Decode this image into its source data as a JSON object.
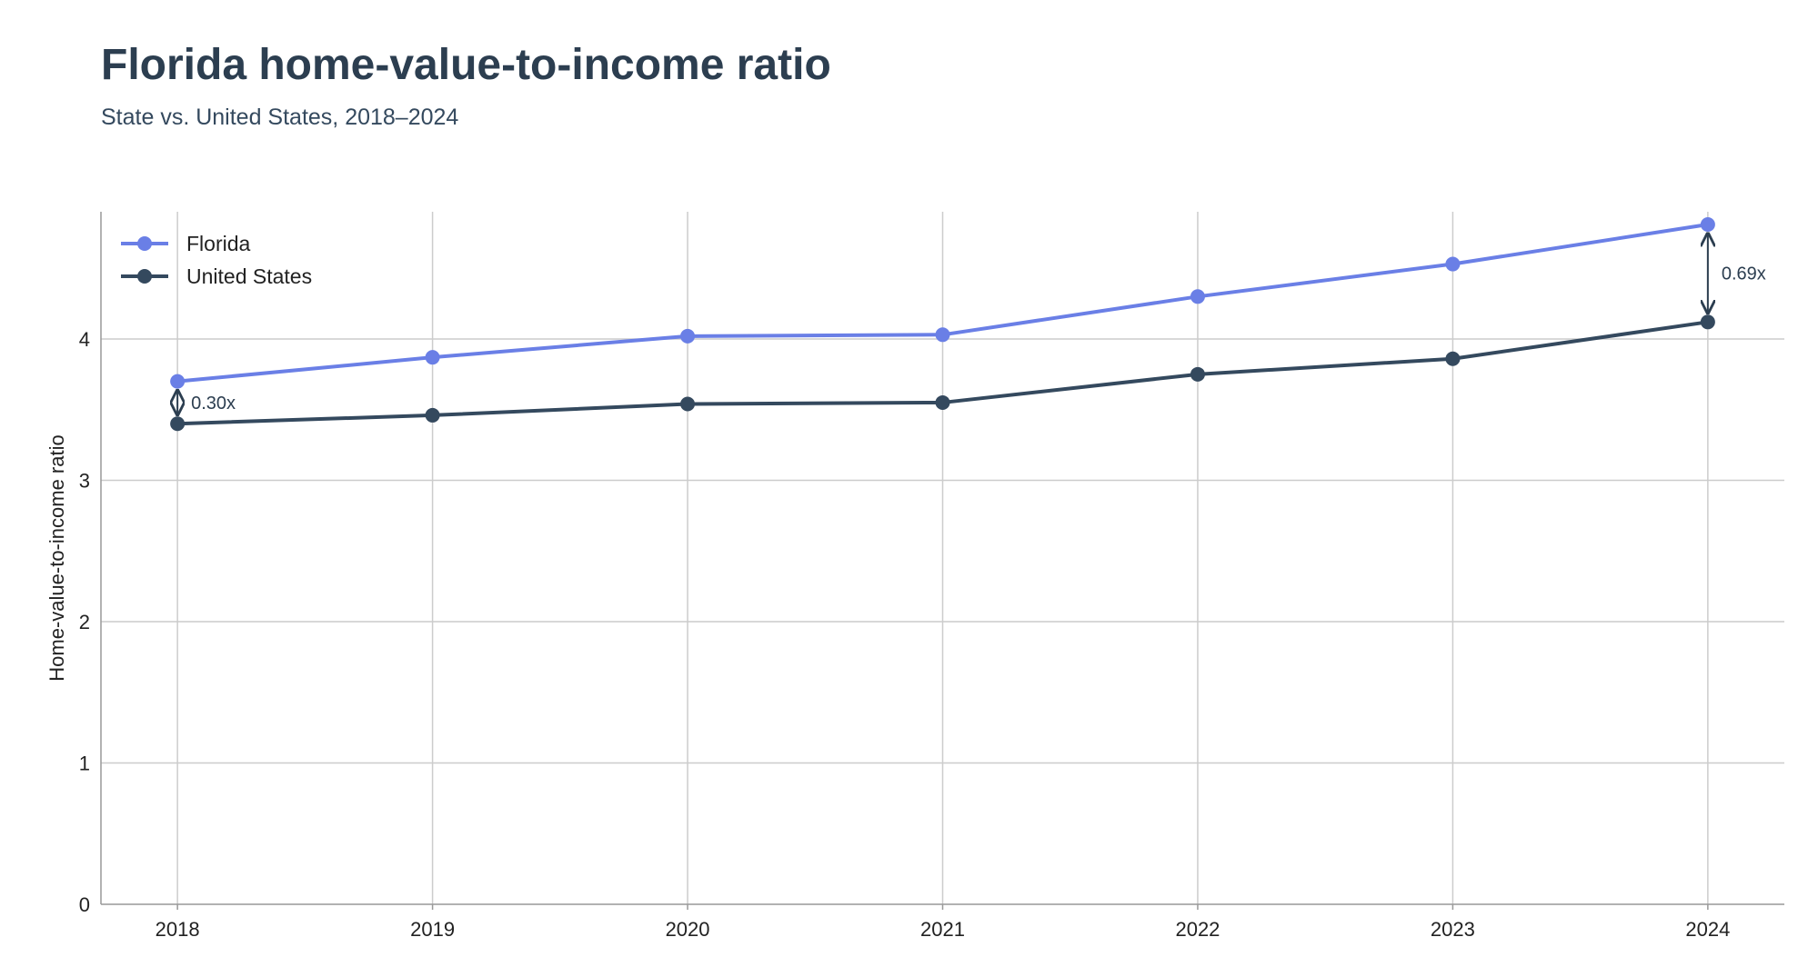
{
  "header": {
    "title": "Florida home-value-to-income ratio",
    "subtitle": "State vs. United States, 2018–2024"
  },
  "chart_data": {
    "type": "line",
    "title": "Florida home-value-to-income ratio",
    "subtitle": "State vs. United States, 2018–2024",
    "xlabel": "",
    "ylabel": "Home-value-to-income ratio",
    "x": [
      2018,
      2019,
      2020,
      2021,
      2022,
      2023,
      2024
    ],
    "x_tick_labels": [
      "2018",
      "2019",
      "2020",
      "2021",
      "2022",
      "2023",
      "2024"
    ],
    "ylim": [
      0,
      4.9
    ],
    "y_ticks": [
      0,
      1,
      2,
      3,
      4
    ],
    "grid": true,
    "legend_position": "top-left",
    "series": [
      {
        "name": "Florida",
        "color": "#6a7fe6",
        "values": [
          3.7,
          3.87,
          4.02,
          4.03,
          4.3,
          4.53,
          4.81
        ]
      },
      {
        "name": "United States",
        "color": "#34495e",
        "values": [
          3.4,
          3.46,
          3.54,
          3.55,
          3.75,
          3.86,
          4.12
        ]
      }
    ],
    "annotations": [
      {
        "x": 2018,
        "text": "0.30x"
      },
      {
        "x": 2024,
        "text": "0.69x"
      }
    ]
  }
}
